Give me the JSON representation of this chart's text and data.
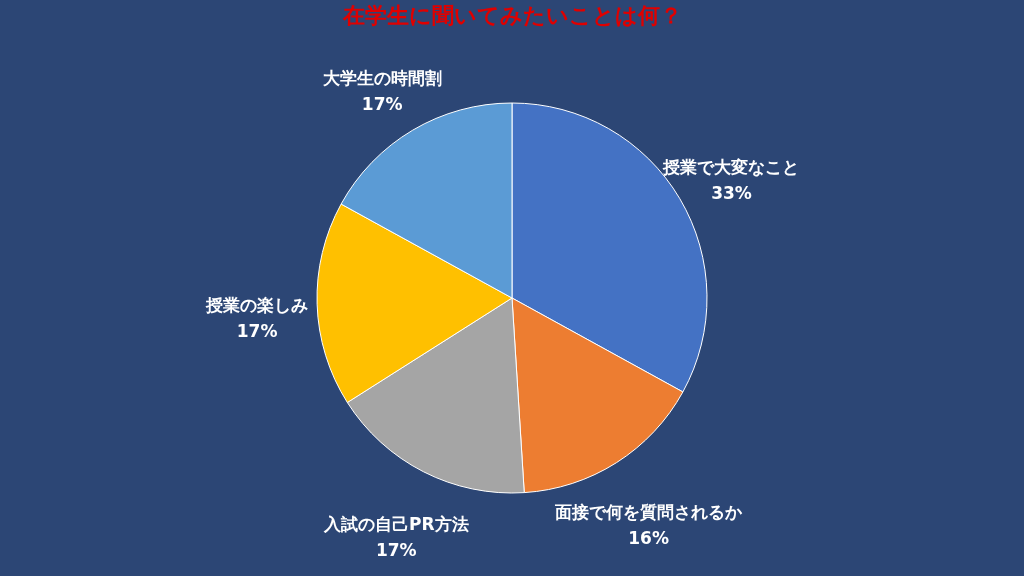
{
  "chart_data": {
    "type": "pie",
    "title": "在学生に聞いてみたいことは何？",
    "categories": [
      "授業で大変なこと",
      "面接で何を質問されるか",
      "入試の自己PR方法",
      "授業の楽しみ",
      "大学生の時間割"
    ],
    "values": [
      33,
      16,
      17,
      17,
      17
    ],
    "colors": [
      "#4472c4",
      "#ed7d31",
      "#a5a5a5",
      "#ffc000",
      "#5b9bd5"
    ],
    "value_labels": [
      "33%",
      "16%",
      "17%",
      "17%",
      "17%"
    ],
    "legend": false
  }
}
